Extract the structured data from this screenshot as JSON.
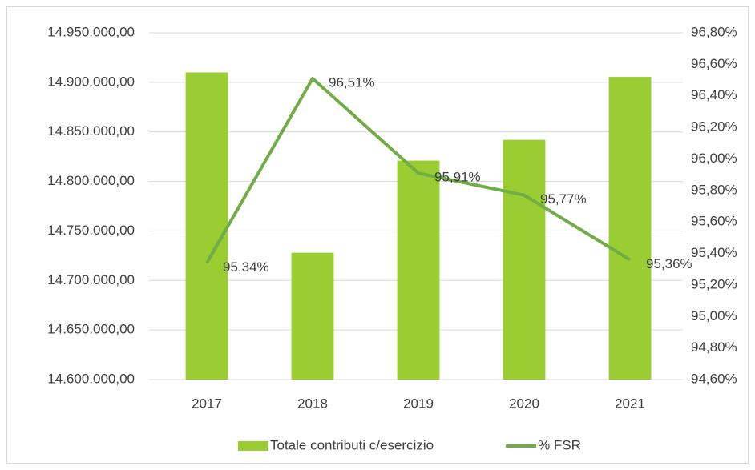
{
  "chart_data": {
    "type": "combo",
    "categories": [
      "2017",
      "2018",
      "2019",
      "2020",
      "2021"
    ],
    "series": [
      {
        "name": "Totale contributi c/esercizio",
        "type": "bar",
        "color": "#9acd32",
        "values": [
          14910000,
          14728000,
          14821000,
          14842000,
          14905500
        ]
      },
      {
        "name": "% FSR",
        "type": "line",
        "color": "#70ad47",
        "axis": "y2",
        "values": [
          95.34,
          96.51,
          95.91,
          95.77,
          95.36
        ],
        "value_labels": [
          "95,34%",
          "96,51%",
          "95,91%",
          "95,77%",
          "95,36%"
        ]
      }
    ],
    "ylim": [
      14600000,
      14950000
    ],
    "yticks": [
      {
        "value": 14600000,
        "label": "14.600.000,00"
      },
      {
        "value": 14650000,
        "label": "14.650.000,00"
      },
      {
        "value": 14700000,
        "label": "14.700.000,00"
      },
      {
        "value": 14750000,
        "label": "14.750.000,00"
      },
      {
        "value": 14800000,
        "label": "14.800.000,00"
      },
      {
        "value": 14850000,
        "label": "14.850.000,00"
      },
      {
        "value": 14900000,
        "label": "14.900.000,00"
      },
      {
        "value": 14950000,
        "label": "14.950.000,00"
      }
    ],
    "y2lim": [
      94.6,
      96.8
    ],
    "y2ticks": [
      {
        "value": 94.6,
        "label": "94,60%"
      },
      {
        "value": 94.8,
        "label": "94,80%"
      },
      {
        "value": 95.0,
        "label": "95,00%"
      },
      {
        "value": 95.2,
        "label": "95,20%"
      },
      {
        "value": 95.4,
        "label": "95,40%"
      },
      {
        "value": 95.6,
        "label": "95,60%"
      },
      {
        "value": 95.8,
        "label": "95,80%"
      },
      {
        "value": 96.0,
        "label": "96,00%"
      },
      {
        "value": 96.2,
        "label": "96,20%"
      },
      {
        "value": 96.4,
        "label": "96,40%"
      },
      {
        "value": 96.6,
        "label": "96,60%"
      },
      {
        "value": 96.8,
        "label": "96,80%"
      }
    ],
    "grid": true,
    "legend": "bottom"
  }
}
